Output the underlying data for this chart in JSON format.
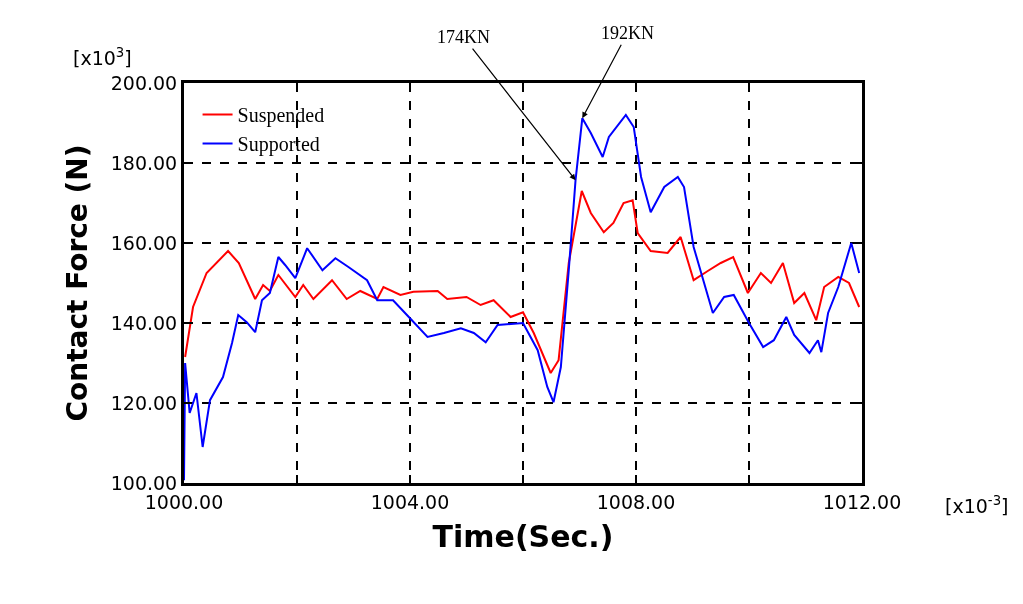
{
  "chart_data": {
    "type": "line",
    "xlabel": "Time(Sec.)",
    "ylabel": "Contact Force (N)",
    "xlim": [
      1000,
      1012
    ],
    "ylim": [
      100,
      200
    ],
    "xticks": [
      {
        "value": 1000,
        "label": "1000.00"
      },
      {
        "value": 1002,
        "label": null
      },
      {
        "value": 1004,
        "label": "1004.00"
      },
      {
        "value": 1006,
        "label": null
      },
      {
        "value": 1008,
        "label": "1008.00"
      },
      {
        "value": 1010,
        "label": null
      },
      {
        "value": 1012,
        "label": "1012.00"
      }
    ],
    "yticks": [
      {
        "value": 100,
        "label": "100.00"
      },
      {
        "value": 120,
        "label": "120.00"
      },
      {
        "value": 140,
        "label": "140.00"
      },
      {
        "value": 160,
        "label": "160.00"
      },
      {
        "value": 180,
        "label": "180.00"
      },
      {
        "value": 200,
        "label": "200.00"
      }
    ],
    "grid": true,
    "legend": "top left",
    "line_style": "solid",
    "series": [
      {
        "name": "Suspended",
        "color": "#ff0000",
        "x": [
          1000.02,
          1000.16,
          1000.4,
          1000.78,
          1000.97,
          1001.26,
          1001.4,
          1001.52,
          1001.67,
          1001.97,
          1002.11,
          1002.29,
          1002.62,
          1002.88,
          1003.12,
          1003.42,
          1003.53,
          1003.83,
          1004.06,
          1004.49,
          1004.66,
          1005.0,
          1005.25,
          1005.48,
          1005.78,
          1006.0,
          1006.19,
          1006.49,
          1006.63,
          1006.81,
          1007.04,
          1007.2,
          1007.43,
          1007.6,
          1007.78,
          1007.94,
          1008.03,
          1008.26,
          1008.56,
          1008.79,
          1009.02,
          1009.27,
          1009.5,
          1009.72,
          1009.98,
          1010.21,
          1010.39,
          1010.6,
          1010.8,
          1010.98,
          1011.19,
          1011.33,
          1011.58,
          1011.77,
          1011.95
        ],
        "values": [
          131.5,
          144,
          152.5,
          158,
          155,
          146,
          149.5,
          148,
          152,
          146.5,
          149.5,
          146,
          150.7,
          146,
          148,
          146,
          149,
          147,
          147.8,
          148,
          146,
          146.5,
          144.5,
          145.7,
          141.5,
          142.7,
          137.5,
          127.5,
          130.7,
          155,
          173,
          167.5,
          162.7,
          165,
          170,
          170.7,
          162.5,
          158,
          157.5,
          161.5,
          150.7,
          153,
          155,
          156.5,
          147.5,
          152.5,
          150,
          155,
          145,
          147.5,
          140.7,
          149,
          151.5,
          150,
          144
        ]
      },
      {
        "name": "Supported",
        "color": "#0000ff",
        "x": [
          1000.0,
          1000.02,
          1000.1,
          1000.22,
          1000.33,
          1000.46,
          1000.69,
          1000.85,
          1000.96,
          1001.11,
          1001.26,
          1001.38,
          1001.52,
          1001.67,
          1001.79,
          1001.97,
          1002.18,
          1002.45,
          1002.68,
          1002.91,
          1003.24,
          1003.42,
          1003.7,
          1004.0,
          1004.31,
          1004.6,
          1004.9,
          1005.13,
          1005.34,
          1005.55,
          1006.0,
          1006.26,
          1006.43,
          1006.54,
          1006.67,
          1006.81,
          1006.93,
          1007.05,
          1007.2,
          1007.41,
          1007.52,
          1007.82,
          1007.96,
          1008.09,
          1008.26,
          1008.5,
          1008.74,
          1008.85,
          1009.02,
          1009.36,
          1009.56,
          1009.73,
          1010.0,
          1010.25,
          1010.44,
          1010.66,
          1010.8,
          1011.07,
          1011.22,
          1011.28,
          1011.4,
          1011.58,
          1011.81,
          1011.95
        ],
        "values": [
          100.7,
          130,
          117.5,
          122.5,
          109,
          120.7,
          126.5,
          135,
          142,
          140.2,
          137.7,
          145.7,
          147.5,
          156.5,
          154.5,
          151.2,
          158.7,
          153.2,
          156.2,
          154,
          150.7,
          145.7,
          145.7,
          141.2,
          136.5,
          137.5,
          138.7,
          137.5,
          135.2,
          139.5,
          140,
          133.2,
          124,
          120.2,
          129,
          153.2,
          175.7,
          191.2,
          187.5,
          181.5,
          186.5,
          192,
          189,
          176.5,
          167.7,
          174,
          176.5,
          174,
          159,
          142.5,
          146.5,
          147,
          140,
          134,
          135.7,
          141.5,
          137,
          132.5,
          135.7,
          132.7,
          142.5,
          149,
          160,
          152.5
        ]
      }
    ],
    "annotations": [
      {
        "text": "174KN",
        "x": 1006.93,
        "y": 175.7
      },
      {
        "text": "192KN",
        "x": 1007.05,
        "y": 191.2
      },
      "[x10$^{3}$]",
      "[x10$^{-3}$]"
    ]
  }
}
